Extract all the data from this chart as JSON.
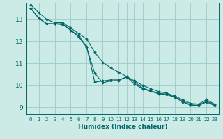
{
  "xlabel": "Humidex (Indice chaleur)",
  "bg_color": "#cceae6",
  "grid_color": "#99cccc",
  "line_color": "#006666",
  "xlim": [
    -0.5,
    23.5
  ],
  "ylim": [
    8.7,
    13.75
  ],
  "yticks": [
    9,
    10,
    11,
    12,
    13
  ],
  "xticks": [
    0,
    1,
    2,
    3,
    4,
    5,
    6,
    7,
    8,
    9,
    10,
    11,
    12,
    13,
    14,
    15,
    16,
    17,
    18,
    19,
    20,
    21,
    22,
    23
  ],
  "series": [
    {
      "x": [
        0,
        1,
        2,
        3,
        4,
        5,
        6,
        7,
        8,
        9,
        10,
        11,
        12,
        13,
        14,
        15,
        16,
        17,
        18,
        19,
        20,
        21,
        22,
        23
      ],
      "y": [
        13.65,
        13.3,
        13.0,
        12.85,
        12.85,
        12.6,
        12.35,
        12.1,
        11.5,
        11.05,
        10.8,
        10.6,
        10.4,
        10.2,
        10.0,
        9.85,
        9.72,
        9.65,
        9.52,
        9.35,
        9.18,
        9.15,
        9.35,
        9.15
      ]
    },
    {
      "x": [
        0,
        1,
        2,
        3,
        4,
        5,
        6,
        7,
        8,
        9,
        10,
        11,
        12,
        13,
        14,
        15,
        16,
        17,
        18,
        19,
        20,
        21,
        22,
        23
      ],
      "y": [
        13.5,
        13.05,
        12.8,
        12.8,
        12.8,
        12.5,
        12.25,
        11.75,
        10.15,
        10.2,
        10.25,
        10.25,
        10.38,
        10.15,
        9.88,
        9.75,
        9.65,
        9.6,
        9.48,
        9.28,
        9.12,
        9.1,
        9.28,
        9.12
      ]
    },
    {
      "x": [
        0,
        1,
        2,
        3,
        4,
        5,
        6,
        7,
        8,
        9,
        10,
        11,
        12,
        13,
        14,
        15,
        16,
        17,
        18,
        19,
        20,
        21,
        22,
        23
      ],
      "y": [
        13.5,
        13.05,
        12.8,
        12.8,
        12.75,
        12.5,
        12.2,
        11.72,
        10.55,
        10.12,
        10.2,
        10.22,
        10.38,
        10.05,
        9.85,
        9.73,
        9.62,
        9.58,
        9.46,
        9.25,
        9.1,
        9.08,
        9.25,
        9.08
      ]
    }
  ]
}
